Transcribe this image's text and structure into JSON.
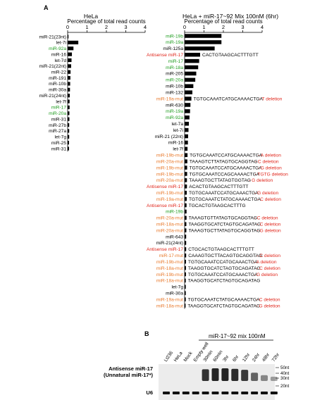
{
  "panel_a_label": "A",
  "panel_b_label": "B",
  "colors": {
    "black": "#000000",
    "green": "#1e9c1e",
    "red": "#e0261b",
    "orange": "#e8782a"
  },
  "chart_data": [
    {
      "type": "bar",
      "orientation": "horizontal",
      "title": "HeLa",
      "xlabel": "Percentage of total read counts",
      "xlim": [
        0,
        4
      ],
      "xticks": [
        "0",
        "1",
        "2",
        "3",
        "4"
      ],
      "bars": [
        {
          "label": "miR-21(23nt)",
          "value": 0.03,
          "color": "black"
        },
        {
          "label": "let-7i",
          "value": 0.55,
          "color": "black"
        },
        {
          "label": "miR-92a",
          "value": 0.3,
          "color": "green"
        },
        {
          "label": "miR-16",
          "value": 0.22,
          "color": "black"
        },
        {
          "label": "let-7d",
          "value": 0.2,
          "color": "black"
        },
        {
          "label": "miR-21(22nt)",
          "value": 0.18,
          "color": "black"
        },
        {
          "label": "miR-22",
          "value": 0.15,
          "color": "black"
        },
        {
          "label": "miR-191",
          "value": 0.14,
          "color": "black"
        },
        {
          "label": "miR-10b",
          "value": 0.13,
          "color": "black"
        },
        {
          "label": "miR-30a",
          "value": 0.12,
          "color": "black"
        },
        {
          "label": "miR-21(24nt)",
          "value": 0.11,
          "color": "black"
        },
        {
          "label": "let-7f",
          "value": 0.1,
          "color": "black"
        },
        {
          "label": "miR-17",
          "value": 0.1,
          "color": "green"
        },
        {
          "label": "miR-20a",
          "value": 0.09,
          "color": "green"
        },
        {
          "label": "miR-31",
          "value": 0.09,
          "color": "black"
        },
        {
          "label": "miR-27b",
          "value": 0.08,
          "color": "black"
        },
        {
          "label": "miR-27a",
          "value": 0.08,
          "color": "black"
        },
        {
          "label": "let-7g",
          "value": 0.08,
          "color": "black"
        },
        {
          "label": "miR-25",
          "value": 0.07,
          "color": "black"
        },
        {
          "label": "miR-31",
          "value": 0.07,
          "color": "black"
        }
      ]
    },
    {
      "type": "bar",
      "orientation": "horizontal",
      "title": "HeLa + miR-17~92 Mix 100nM (6hr)",
      "xlabel": "Percentage of total read counts",
      "xlim": [
        0,
        4
      ],
      "xticks": [
        "0",
        "1",
        "2",
        "3",
        "4"
      ],
      "bars": [
        {
          "label": "miR-19b",
          "value": 1.9,
          "color": "green",
          "seq": "",
          "note": ""
        },
        {
          "label": "miR-19a",
          "value": 1.9,
          "color": "green",
          "seq": "",
          "note": ""
        },
        {
          "label": "miR-125a",
          "value": 1.55,
          "color": "black",
          "seq": "",
          "note": ""
        },
        {
          "label": "Antisense miR-17",
          "value": 0.8,
          "color": "red",
          "seq": "CACTGTAAGCACTTTGTT",
          "note": ""
        },
        {
          "label": "miR-17",
          "value": 0.75,
          "color": "green",
          "seq": "",
          "note": ""
        },
        {
          "label": "miR-18a",
          "value": 0.7,
          "color": "green",
          "seq": "",
          "note": ""
        },
        {
          "label": "miR-205",
          "value": 0.6,
          "color": "black",
          "seq": "",
          "note": ""
        },
        {
          "label": "miR-20a",
          "value": 0.55,
          "color": "green",
          "seq": "",
          "note": ""
        },
        {
          "label": "miR-10b",
          "value": 0.45,
          "color": "black",
          "seq": "",
          "note": ""
        },
        {
          "label": "miR-132",
          "value": 0.4,
          "color": "black",
          "seq": "",
          "note": ""
        },
        {
          "label": "miR-19a-mut",
          "value": 0.35,
          "color": "orange",
          "seq": "TGTGCAAATCATGCAAAACTGA",
          "note": "- T deletion"
        },
        {
          "label": "miR-630",
          "value": 0.3,
          "color": "black",
          "seq": "",
          "note": ""
        },
        {
          "label": "miR-19a",
          "value": 0.28,
          "color": "green",
          "seq": "",
          "note": ""
        },
        {
          "label": "miR-92a",
          "value": 0.25,
          "color": "green",
          "seq": "",
          "note": ""
        },
        {
          "label": "let-7a",
          "value": 0.22,
          "color": "black",
          "seq": "",
          "note": ""
        },
        {
          "label": "let-7i",
          "value": 0.2,
          "color": "black",
          "seq": "",
          "note": ""
        },
        {
          "label": "miR-21 (22nt)",
          "value": 0.18,
          "color": "black",
          "seq": "",
          "note": ""
        },
        {
          "label": "miR-16",
          "value": 0.17,
          "color": "black",
          "seq": "",
          "note": ""
        },
        {
          "label": "let-7f",
          "value": 0.15,
          "color": "black",
          "seq": "",
          "note": ""
        },
        {
          "label": "miR-19b-mut",
          "value": 0.15,
          "color": "orange",
          "seq": "TGTGCAAATCCATGCAAAACTGA",
          "note": "- A deletion"
        },
        {
          "label": "miR-20a-mut",
          "value": 0.14,
          "color": "orange",
          "seq": "TAAAGTCTTATAGTGCAGGTAG",
          "note": "- C deletion"
        },
        {
          "label": "miR-19b-mut",
          "value": 0.13,
          "color": "orange",
          "seq": "TGTGCAAATCCATGCAAAACTGA",
          "note": "- G deletion"
        },
        {
          "label": "miR-19b-mut",
          "value": 0.13,
          "color": "orange",
          "seq": "TGTGCAAATCCAGCAAAACTGA",
          "note": "- TGTG deletion"
        },
        {
          "label": "miR-20a-mut",
          "value": 0.12,
          "color": "orange",
          "seq": "TAAAGTGCTTATAGTGGTAG",
          "note": "- G deletion"
        },
        {
          "label": "Antisense miR-17",
          "value": 0.12,
          "color": "red",
          "seq": "ACACTGTAAGCACTTTGTT",
          "note": ""
        },
        {
          "label": "miR-19b-mut",
          "value": 0.11,
          "color": "orange",
          "seq": "TGTGCAAATCCATGCAAACTGA",
          "note": "- G deletion"
        },
        {
          "label": "miR-19a-mut",
          "value": 0.11,
          "color": "orange",
          "seq": "TGTGCAAATCTATGCAAAACTGA",
          "note": "- C deletion"
        },
        {
          "label": "Antisense miR-17",
          "value": 0.1,
          "color": "red",
          "seq": "TGCACTGTAAGCACTTTG",
          "note": ""
        },
        {
          "label": "miR-19b",
          "value": 0.1,
          "color": "green",
          "seq": "",
          "note": ""
        },
        {
          "label": "miR-20a-mut",
          "value": 0.1,
          "color": "orange",
          "seq": "TAAAGTGTTATAGTGCAGGTAG",
          "note": "- C deletion"
        },
        {
          "label": "miR-18a-mut",
          "value": 0.09,
          "color": "orange",
          "seq": "TAAGGTGCATCTAGTGCAGATAG",
          "note": "- C deletion"
        },
        {
          "label": "miR-20a-mut",
          "value": 0.09,
          "color": "orange",
          "seq": "TAAAGTGCTTATAGTGCAGGTAG",
          "note": "- G deletion"
        },
        {
          "label": "miR-643",
          "value": 0.08,
          "color": "black",
          "seq": "",
          "note": ""
        },
        {
          "label": "miR-21(24nt)",
          "value": 0.08,
          "color": "black",
          "seq": "",
          "note": ""
        },
        {
          "label": "Antisense miR-17",
          "value": 0.08,
          "color": "red",
          "seq": "CTGCACTGTAAGCACTTTGTT",
          "note": ""
        },
        {
          "label": "miR-17-mut",
          "value": 0.08,
          "color": "orange",
          "seq": "CAAAGTGCTTACAGTGCAGGTAG",
          "note": "- C deletion"
        },
        {
          "label": "miR-19b-mut",
          "value": 0.07,
          "color": "orange",
          "seq": "TGTGCAAATCCATGCAAACTGA",
          "note": "- A deletion"
        },
        {
          "label": "miR-18a-mut",
          "value": 0.07,
          "color": "orange",
          "seq": "TAAGGTGCATCTAGTGCAGATAG",
          "note": "- C deletion"
        },
        {
          "label": "miR-19b-mut",
          "value": 0.07,
          "color": "orange",
          "seq": "TGTGCAAATCCATGCAAACTGA",
          "note": "- G deletion"
        },
        {
          "label": "miR-18a-mut",
          "value": 0.06,
          "color": "orange",
          "seq": "TAAGGTGCATCTAGTGCAGATAG",
          "note": ""
        },
        {
          "label": "let-7g",
          "value": 0.06,
          "color": "black",
          "seq": "",
          "note": ""
        },
        {
          "label": "miR-30a",
          "value": 0.06,
          "color": "black",
          "seq": "",
          "note": ""
        },
        {
          "label": "miR-19a-mut",
          "value": 0.06,
          "color": "orange",
          "seq": "TGTGCAAATCTATGCAAAACTGA",
          "note": "- C deletion"
        },
        {
          "label": "miR-18a-mut",
          "value": 0.05,
          "color": "orange",
          "seq": "TAAGGTGCATCTAGTGCAGATAG",
          "note": "- G deletion"
        }
      ]
    }
  ],
  "blot": {
    "lanes": [
      "Lt236",
      "HeLa",
      "Mock",
      "Empty well",
      "30min",
      "60min",
      "3hr",
      "6hr",
      "12hr",
      "24hr",
      "48hr",
      "72hr"
    ],
    "treatment_label": "miR-17~92 mix 100nM",
    "markers": [
      "50nt",
      "40nt",
      "30nt",
      "20nt"
    ],
    "row_label_line1": "Antisense miR-17",
    "row_label_line2": "(Unnatural miR-17*)",
    "loading_label": "U6"
  }
}
